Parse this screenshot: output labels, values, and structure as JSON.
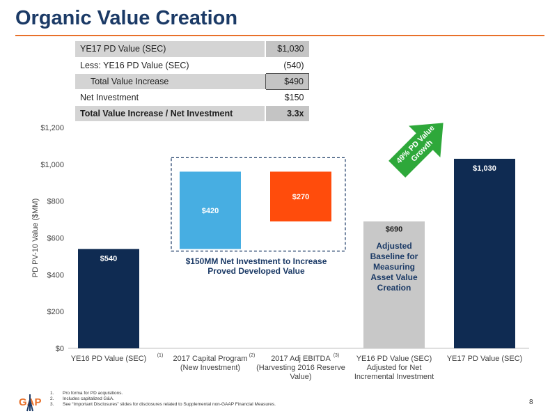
{
  "title": "Organic Value Creation",
  "summary_table": [
    {
      "label": "YE17 PD Value (SEC)",
      "value": "$1,030",
      "style": "plain"
    },
    {
      "label": "Less: YE16 PD Value (SEC)",
      "value": "(540)",
      "style": "plain"
    },
    {
      "label": "Total Value Increase",
      "value": "$490",
      "style": "boxed"
    },
    {
      "label": "Net Investment",
      "value": "$150",
      "style": "plain"
    },
    {
      "label": "Total Value Increase / Net Investment",
      "value": "3.3x",
      "style": "total"
    }
  ],
  "chart_data": {
    "type": "bar",
    "subtype": "waterfall",
    "ylabel": "PD PV-10 Value ($MM)",
    "ylim": [
      0,
      1200
    ],
    "yticks": [
      0,
      200,
      400,
      600,
      800,
      1000,
      1200
    ],
    "ytick_labels": [
      "$0",
      "$200",
      "$400",
      "$600",
      "$800",
      "$1,000",
      "$1,200"
    ],
    "grid": false,
    "bars": [
      {
        "category_lines": [
          "YE16 PD Value (SEC)"
        ],
        "superscript": "(1)",
        "base": 0,
        "value": 540,
        "label": "$540",
        "color": "#0f2b52"
      },
      {
        "category_lines": [
          "2017 Capital Program",
          "(New Investment)"
        ],
        "superscript": "(2)",
        "base": 540,
        "value": 420,
        "label": "$420",
        "color": "#47aee2"
      },
      {
        "category_lines": [
          "2017 Adj EBITDA",
          "(Harvesting 2016 Reserve",
          "Value)"
        ],
        "superscript": "(3)",
        "base": 690,
        "value": 270,
        "label": "$270",
        "color": "#ff4c0c"
      },
      {
        "category_lines": [
          "YE16 PD Value (SEC)",
          "Adjusted for Net",
          "Incremental Investment"
        ],
        "superscript": "",
        "base": 0,
        "value": 690,
        "label": "$690",
        "color": "#c8c8c8"
      },
      {
        "category_lines": [
          "YE17 PD Value (SEC)"
        ],
        "superscript": "",
        "base": 0,
        "value": 1030,
        "label": "$1,030",
        "color": "#0f2b52"
      }
    ],
    "annotations": {
      "net_investment_lines": [
        "$150MM Net Investment to Increase",
        "Proved Developed Value"
      ],
      "baseline_lines": [
        "Adjusted",
        "Baseline for",
        "Measuring",
        "Asset Value",
        "Creation"
      ],
      "growth_arrow_lines": [
        "49% PD Value",
        "Growth"
      ]
    }
  },
  "footnotes": [
    {
      "num": "1.",
      "text": "Pro forma for PD acquisitions."
    },
    {
      "num": "2.",
      "text": "Includes capitalized G&A."
    },
    {
      "num": "3.",
      "text": "See “Important Disclosures” slides for disclosures related to Supplemental non-GAAP Financial Measures."
    }
  ],
  "logo_letters": "GAP",
  "page_number": "8",
  "colors": {
    "title": "#1b3a66",
    "rule": "#e8702a",
    "arrow": "#2ea83a"
  }
}
